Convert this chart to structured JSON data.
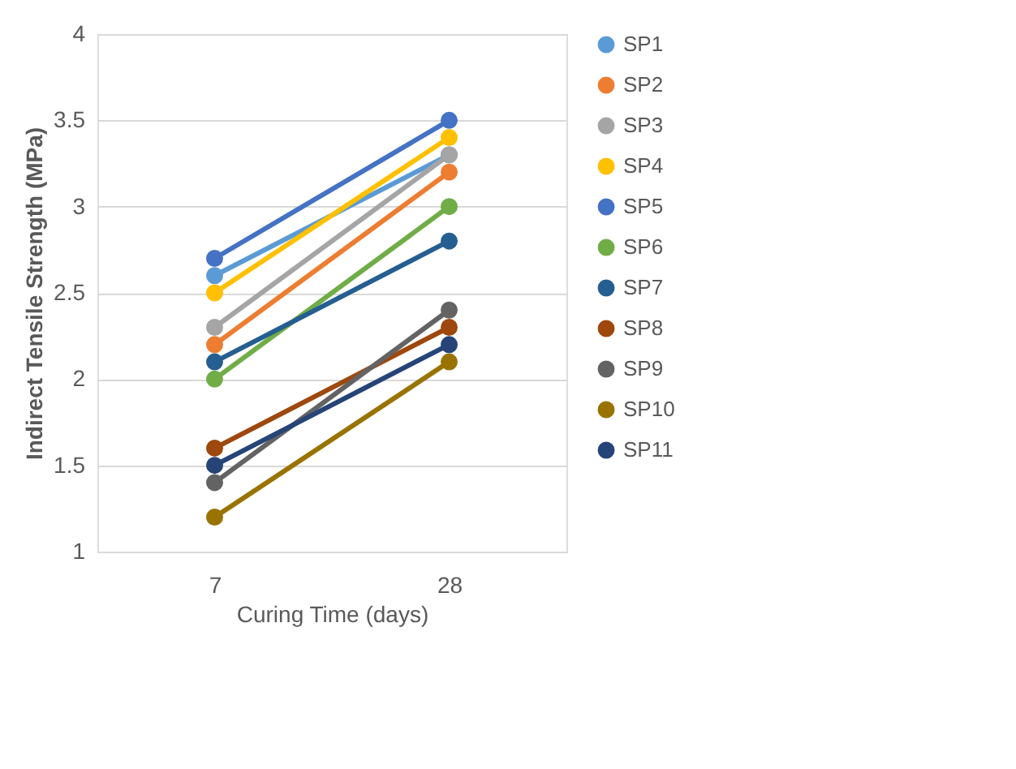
{
  "chart_data": {
    "type": "line",
    "xlabel": "Curing Time (days)",
    "ylabel": "Indirect Tensile Strength (MPa)",
    "categories": [
      "7",
      "28"
    ],
    "series": [
      {
        "name": "SP1",
        "color": "#5b9bd5",
        "values": [
          2.6,
          3.3
        ]
      },
      {
        "name": "SP2",
        "color": "#ed7d31",
        "values": [
          2.2,
          3.2
        ]
      },
      {
        "name": "SP3",
        "color": "#a5a5a5",
        "values": [
          2.3,
          3.3
        ]
      },
      {
        "name": "SP4",
        "color": "#ffc000",
        "values": [
          2.5,
          3.4
        ]
      },
      {
        "name": "SP5",
        "color": "#4472c4",
        "values": [
          2.7,
          3.5
        ]
      },
      {
        "name": "SP6",
        "color": "#70ad47",
        "values": [
          2.0,
          3.0
        ]
      },
      {
        "name": "SP7",
        "color": "#255e91",
        "values": [
          2.1,
          2.8
        ]
      },
      {
        "name": "SP8",
        "color": "#9e480e",
        "values": [
          1.6,
          2.3
        ]
      },
      {
        "name": "SP9",
        "color": "#636363",
        "values": [
          1.4,
          2.4
        ]
      },
      {
        "name": "SP10",
        "color": "#997300",
        "values": [
          1.2,
          2.1
        ]
      },
      {
        "name": "SP11",
        "color": "#264478",
        "values": [
          1.5,
          2.2
        ]
      }
    ],
    "ylim": [
      1,
      4
    ],
    "yticks": [
      1,
      1.5,
      2,
      2.5,
      3,
      3.5,
      4
    ],
    "grid": "y",
    "legend": "right",
    "marker": "circle",
    "line_style": "solid"
  }
}
